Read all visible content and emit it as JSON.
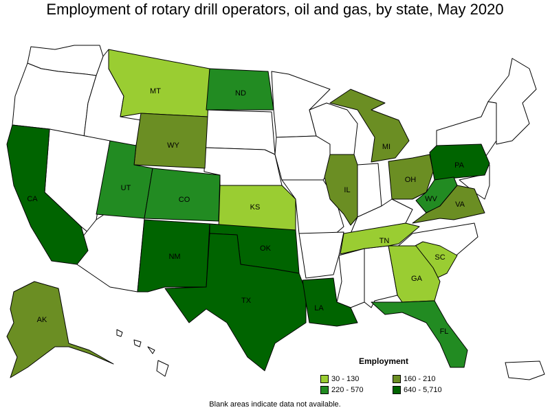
{
  "title": "Employment of rotary drill operators, oil and gas, by state, May 2020",
  "legend": {
    "title": "Employment",
    "items": [
      {
        "label": "30 - 130",
        "color": "#9acd32"
      },
      {
        "label": "160 - 210",
        "color": "#6b8e23"
      },
      {
        "label": "220 - 570",
        "color": "#228b22"
      },
      {
        "label": "640 - 5,710",
        "color": "#006400"
      }
    ]
  },
  "note": "Blank areas indicate data not available.",
  "states": {
    "MT": "MT",
    "ND": "ND",
    "WY": "WY",
    "UT": "UT",
    "CO": "CO",
    "KS": "KS",
    "NM": "NM",
    "OK": "OK",
    "TX": "TX",
    "LA": "LA",
    "CA": "CA",
    "AK": "AK",
    "IL": "IL",
    "MI": "MI",
    "OH": "OH",
    "PA": "PA",
    "WV": "WV",
    "VA": "VA",
    "TN": "TN",
    "SC": "SC",
    "GA": "GA",
    "FL": "FL"
  },
  "colors": {
    "no_data": "#ffffff",
    "tier1": "#9acd32",
    "tier2": "#6b8e23",
    "tier3": "#228b22",
    "tier4": "#006400"
  }
}
